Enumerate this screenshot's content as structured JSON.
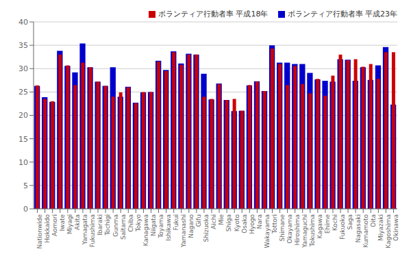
{
  "chart_data": {
    "type": "bar",
    "categories": [
      "Nationwide",
      "Hokkaido",
      "Aomori",
      "Iwate",
      "Miyagi",
      "Akita",
      "Yamagata",
      "Fukushima",
      "Ibaraki",
      "Tochigi",
      "Gunma",
      "Saitama",
      "Chiba",
      "Tokyo",
      "Kanagawa",
      "Niigata",
      "Toyama",
      "Ishikawa",
      "Fukui",
      "Yamanashi",
      "Nagano",
      "Gifu",
      "Shizuoka",
      "Aichi",
      "Mie",
      "Shiga",
      "Kyoto",
      "Osaka",
      "Hyogo",
      "Nara",
      "Wakayama",
      "Tottori",
      "Shimane",
      "Okayama",
      "Hiroshima",
      "Yamaguchi",
      "Tokushima",
      "Kagawa",
      "Ehime",
      "Kochi",
      "Fukuoka",
      "Saga",
      "Nagasaki",
      "Kumamoto",
      "Oita",
      "Miyazaki",
      "Kagoshima",
      "Okinawa"
    ],
    "series": [
      {
        "name": "ボランティア行動者率 平成23年",
        "color": "#0000cc",
        "values": [
          26.3,
          23.9,
          22.9,
          33.8,
          30.6,
          29.2,
          35.4,
          30.3,
          27.2,
          26.3,
          30.3,
          24.0,
          26.1,
          22.7,
          24.9,
          25.0,
          31.7,
          29.7,
          33.7,
          31.1,
          33.2,
          33.0,
          28.9,
          23.4,
          26.8,
          23.3,
          20.9,
          21.0,
          26.4,
          27.3,
          25.2,
          35.0,
          31.3,
          31.3,
          31.0,
          31.0,
          29.1,
          27.7,
          27.4,
          27.2,
          32.0,
          31.9,
          27.4,
          30.3,
          27.6,
          30.7,
          34.6,
          22.3
        ]
      },
      {
        "name": "ボランティア行動者率 平成18年",
        "color": "#cc0000",
        "values": [
          26.4,
          23.5,
          23.0,
          33.0,
          30.7,
          26.5,
          31.3,
          30.3,
          27.2,
          26.3,
          24.0,
          24.9,
          26.0,
          22.6,
          25.0,
          25.0,
          31.5,
          29.5,
          33.5,
          30.8,
          33.0,
          33.0,
          24.0,
          23.5,
          26.7,
          23.3,
          23.5,
          21.0,
          26.5,
          27.2,
          25.2,
          34.3,
          31.0,
          26.5,
          30.6,
          26.7,
          24.7,
          27.8,
          24.2,
          28.5,
          33.0,
          31.8,
          32.0,
          30.4,
          31.0,
          27.8,
          33.5,
          33.5
        ]
      }
    ],
    "ylim": [
      0,
      40
    ],
    "yticks": [
      0,
      5,
      10,
      15,
      20,
      25,
      30,
      35,
      40
    ],
    "grid": true,
    "legend": "upper right"
  }
}
